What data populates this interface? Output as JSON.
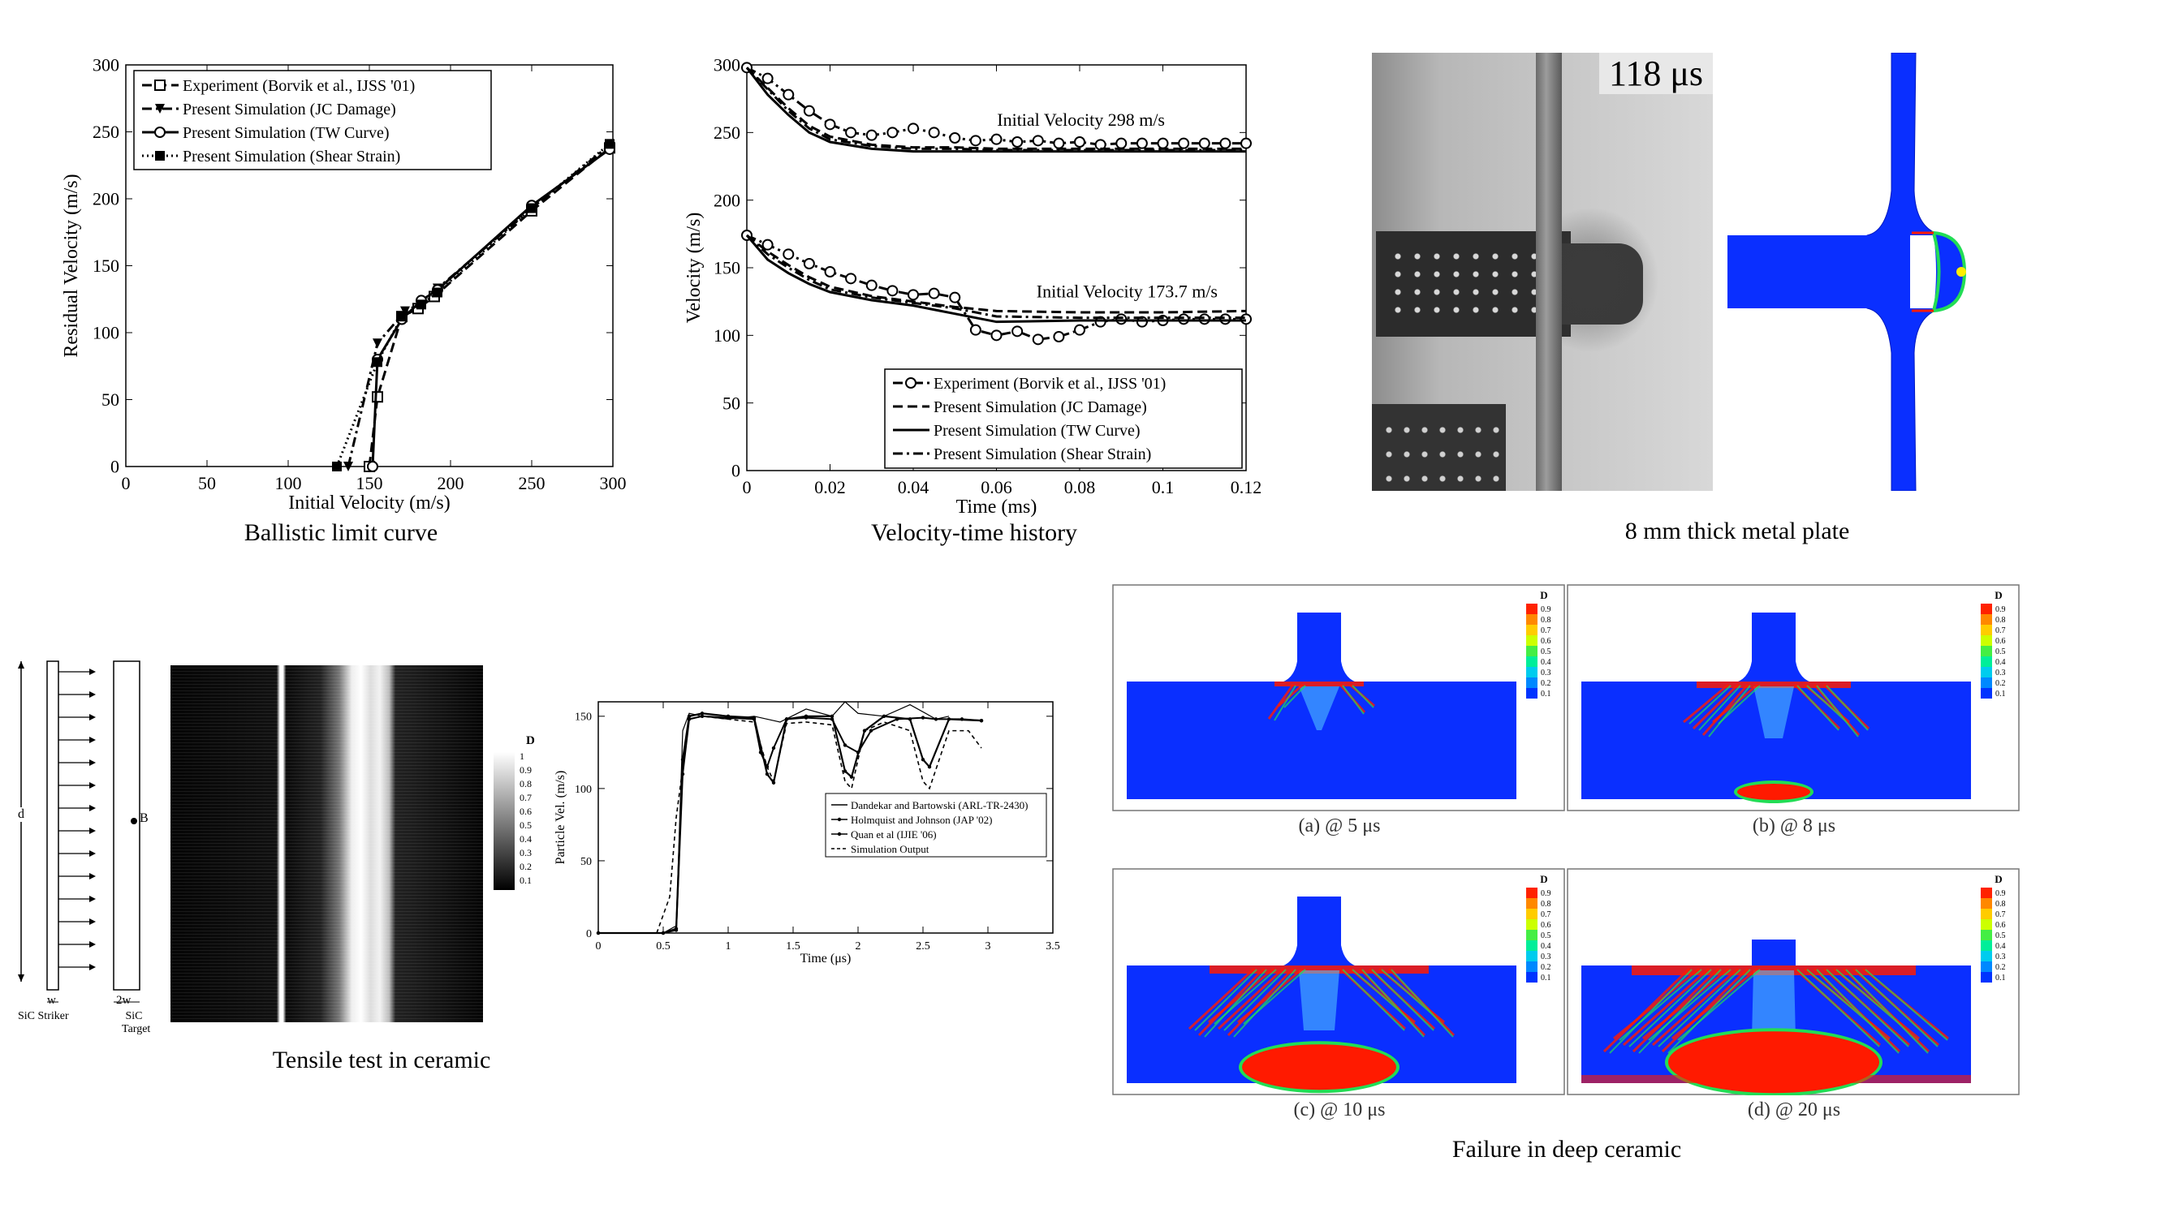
{
  "captions": {
    "ballistic": "Ballistic limit curve",
    "velocity": "Velocity-time history",
    "plate": "8 mm thick metal plate",
    "tensile": "Tensile test in ceramic",
    "failure": "Failure in deep ceramic"
  },
  "plate_photo": {
    "timestamp": "118 μs"
  },
  "failure_panels": [
    {
      "label": "(a) @ 5 μs"
    },
    {
      "label": "(b) @ 8 μs"
    },
    {
      "label": "(c) @ 10 μs"
    },
    {
      "label": "(d) @ 20 μs"
    }
  ],
  "damage_legend": {
    "title": "D",
    "ticks": [
      "0.9",
      "0.8",
      "0.7",
      "0.6",
      "0.5",
      "0.4",
      "0.3",
      "0.2",
      "0.1"
    ]
  },
  "tensile_schematic": {
    "d": "d",
    "w": "w",
    "two_w": "2w",
    "striker": "SiC Striker",
    "target": "SiC Target",
    "point": "B"
  },
  "tensile_legend": {
    "title": "D",
    "ticks": [
      "1",
      "0.9",
      "0.8",
      "0.7",
      "0.6",
      "0.5",
      "0.4",
      "0.3",
      "0.2",
      "0.1"
    ]
  },
  "colors": {
    "sim_blue": "#0a2fff",
    "sim_red": "#ff1a00",
    "sim_green": "#22dd55",
    "sim_yellow": "#ffee00"
  },
  "chart_data": [
    {
      "id": "ballistic",
      "type": "line",
      "xlabel": "Initial Velocity (m/s)",
      "ylabel": "Residual Velocity (m/s)",
      "xlim": [
        0,
        300
      ],
      "ylim": [
        0,
        300
      ],
      "xticks": [
        0,
        50,
        100,
        150,
        200,
        250,
        300
      ],
      "yticks": [
        0,
        50,
        100,
        150,
        200,
        250,
        300
      ],
      "legend_position": "top-left",
      "series": [
        {
          "name": "Experiment (Borvik et al., IJSS '01)",
          "style": "dashed",
          "marker": "square-open",
          "points": [
            [
              150,
              0
            ],
            [
              155,
              52
            ],
            [
              170,
              112
            ],
            [
              180,
              118
            ],
            [
              190,
              127
            ],
            [
              250,
              191
            ],
            [
              298,
              238
            ]
          ]
        },
        {
          "name": "Present Simulation (JC Damage)",
          "style": "dashdot",
          "marker": "triangle-down",
          "points": [
            [
              137,
              0
            ],
            [
              155,
              92
            ],
            [
              172,
              116
            ],
            [
              182,
              122
            ],
            [
              192,
              133
            ],
            [
              250,
              193
            ],
            [
              298,
              240
            ]
          ]
        },
        {
          "name": "Present Simulation (TW Curve)",
          "style": "solid",
          "marker": "circle-open",
          "points": [
            [
              152,
              0
            ],
            [
              155,
              80
            ],
            [
              170,
              110
            ],
            [
              182,
              124
            ],
            [
              192,
              132
            ],
            [
              250,
              195
            ],
            [
              298,
              237
            ]
          ]
        },
        {
          "name": "Present Simulation (Shear Strain)",
          "style": "dotted",
          "marker": "square-filled",
          "points": [
            [
              130,
              0
            ],
            [
              155,
              78
            ],
            [
              170,
              112
            ],
            [
              182,
              121
            ],
            [
              192,
              130
            ],
            [
              250,
              193
            ],
            [
              298,
              241
            ]
          ]
        }
      ]
    },
    {
      "id": "velocity_time",
      "type": "line",
      "xlabel": "Time (ms)",
      "ylabel": "Velocity (m/s)",
      "xlim": [
        0,
        0.12
      ],
      "ylim": [
        0,
        300
      ],
      "xticks": [
        "0",
        "0.02",
        "0.04",
        "0.06",
        "0.08",
        "0.1",
        "0.12"
      ],
      "yticks": [
        0,
        50,
        100,
        150,
        200,
        250,
        300
      ],
      "legend_position": "bottom-right",
      "annotations": [
        "Initial Velocity 298 m/s",
        "Initial Velocity 173.7 m/s"
      ],
      "series": [
        {
          "name": "Experiment (Borvik et al., IJSS '01)",
          "style": "dashdot",
          "marker": "circle-open",
          "x": [
            0,
            0.005,
            0.01,
            0.015,
            0.02,
            0.025,
            0.03,
            0.035,
            0.04,
            0.045,
            0.05,
            0.055,
            0.06,
            0.065,
            0.07,
            0.075,
            0.08,
            0.085,
            0.09,
            0.095,
            0.1,
            0.105,
            0.11,
            0.115,
            0.12
          ],
          "high": [
            298,
            290,
            278,
            266,
            256,
            250,
            248,
            250,
            253,
            250,
            246,
            244,
            245,
            243,
            244,
            242,
            243,
            241,
            242,
            242,
            242,
            242,
            242,
            242,
            242
          ],
          "low": [
            174,
            167,
            160,
            153,
            147,
            142,
            137,
            133,
            130,
            131,
            128,
            104,
            100,
            103,
            97,
            99,
            104,
            110,
            112,
            110,
            111,
            112,
            112,
            112,
            112
          ]
        },
        {
          "name": "Present Simulation (JC Damage)",
          "style": "dashed",
          "marker": "none",
          "x": [
            0,
            0.005,
            0.01,
            0.015,
            0.02,
            0.03,
            0.04,
            0.05,
            0.06,
            0.08,
            0.1,
            0.12
          ],
          "high": [
            298,
            283,
            268,
            255,
            247,
            241,
            239,
            239,
            238,
            238,
            238,
            238
          ],
          "low": [
            174,
            162,
            152,
            143,
            136,
            129,
            125,
            121,
            118,
            117,
            117,
            118
          ]
        },
        {
          "name": "Present Simulation (TW Curve)",
          "style": "solid",
          "marker": "none",
          "x": [
            0,
            0.005,
            0.01,
            0.015,
            0.02,
            0.03,
            0.04,
            0.05,
            0.06,
            0.08,
            0.1,
            0.12
          ],
          "high": [
            298,
            278,
            263,
            250,
            243,
            238,
            236,
            236,
            236,
            236,
            236,
            236
          ],
          "low": [
            174,
            156,
            146,
            138,
            132,
            126,
            122,
            116,
            110,
            111,
            111,
            111
          ]
        },
        {
          "name": "Present Simulation (Shear Strain)",
          "style": "dashdot",
          "marker": "none",
          "x": [
            0,
            0.005,
            0.01,
            0.015,
            0.02,
            0.03,
            0.04,
            0.05,
            0.06,
            0.08,
            0.1,
            0.12
          ],
          "high": [
            298,
            282,
            266,
            253,
            245,
            240,
            238,
            238,
            237,
            237,
            237,
            237
          ],
          "low": [
            174,
            160,
            150,
            141,
            134,
            128,
            124,
            120,
            114,
            113,
            113,
            113
          ]
        }
      ]
    },
    {
      "id": "particle_velocity",
      "type": "line",
      "xlabel": "Time (μs)",
      "ylabel": "Particle Vel. (m/s)",
      "xlim": [
        0,
        3.5
      ],
      "ylim": [
        0,
        160
      ],
      "xticks": [
        "0",
        "0.5",
        "1",
        "1.5",
        "2",
        "2.5",
        "3",
        "3.5"
      ],
      "yticks": [
        0,
        50,
        100,
        150
      ],
      "legend_position": "center-right",
      "series": [
        {
          "name": "Dandekar and Bartowski (ARL-TR-2430)",
          "style": "solid-thin",
          "x": [
            0,
            0.5,
            0.6,
            0.65,
            0.7,
            0.8,
            1.0,
            1.2,
            1.4,
            1.6,
            1.8,
            1.9,
            2.0,
            2.2,
            2.4,
            2.6,
            2.7
          ],
          "y": [
            0,
            0,
            5,
            140,
            152,
            150,
            148,
            150,
            146,
            155,
            150,
            160,
            152,
            150,
            158,
            148,
            150
          ]
        },
        {
          "name": "Holmquist and Johnson (JAP '02)",
          "style": "marker-dot",
          "x": [
            0,
            0.5,
            0.6,
            0.65,
            0.7,
            0.8,
            1.0,
            1.2,
            1.25,
            1.3,
            1.35,
            1.45,
            1.6,
            1.8,
            1.9,
            2.0,
            2.1,
            2.3,
            2.5,
            2.6,
            2.8,
            2.95
          ],
          "y": [
            0,
            0,
            2,
            110,
            148,
            150,
            149,
            148,
            125,
            115,
            128,
            148,
            149,
            148,
            130,
            125,
            140,
            148,
            149,
            148,
            148,
            147
          ]
        },
        {
          "name": "Quan et al (IJIE '06)",
          "style": "solid-dots",
          "x": [
            0,
            0.5,
            0.6,
            0.65,
            0.7,
            0.8,
            1.0,
            1.2,
            1.3,
            1.35,
            1.45,
            1.6,
            1.8,
            1.9,
            1.95,
            2.05,
            2.2,
            2.4,
            2.5,
            2.55,
            2.7,
            2.95
          ],
          "y": [
            0,
            0,
            3,
            120,
            150,
            152,
            150,
            149,
            110,
            104,
            148,
            150,
            150,
            112,
            108,
            140,
            150,
            148,
            120,
            115,
            148,
            147
          ]
        },
        {
          "name": "Simulation Output",
          "style": "dashed",
          "x": [
            0,
            0.45,
            0.55,
            0.6,
            0.7,
            0.8,
            1.0,
            1.2,
            1.3,
            1.35,
            1.45,
            1.6,
            1.8,
            1.9,
            1.95,
            2.05,
            2.2,
            2.4,
            2.5,
            2.55,
            2.7,
            2.85,
            2.95
          ],
          "y": [
            0,
            0,
            25,
            80,
            148,
            150,
            148,
            146,
            115,
            105,
            145,
            146,
            144,
            105,
            100,
            140,
            146,
            140,
            105,
            100,
            140,
            140,
            128
          ]
        }
      ]
    }
  ]
}
